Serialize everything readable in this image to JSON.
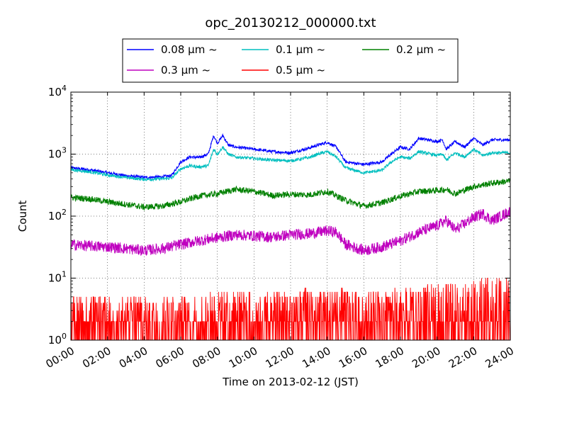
{
  "chart_data": {
    "type": "line",
    "title": "opc_20130212_000000.txt",
    "xlabel": "Time on 2013-02-12 (JST)",
    "ylabel": "Count",
    "y_scale": "log",
    "ylim": [
      1,
      10000
    ],
    "xlim_hours": [
      0,
      24
    ],
    "x_ticks": [
      "00:00",
      "02:00",
      "04:00",
      "06:00",
      "08:00",
      "10:00",
      "12:00",
      "14:00",
      "16:00",
      "18:00",
      "20:00",
      "22:00",
      "24:00"
    ],
    "y_ticks": [
      {
        "base": "10",
        "exp": "0",
        "value": 1
      },
      {
        "base": "10",
        "exp": "1",
        "value": 10
      },
      {
        "base": "10",
        "exp": "2",
        "value": 100
      },
      {
        "base": "10",
        "exp": "3",
        "value": 1000
      },
      {
        "base": "10",
        "exp": "4",
        "value": 10000
      }
    ],
    "grid": true,
    "legend_position": "top-center",
    "series": [
      {
        "name": "0.08 μm ~",
        "color": "#0000ff",
        "x": [
          0,
          1,
          2,
          3,
          4,
          5,
          5.5,
          6,
          6.5,
          7,
          7.5,
          7.8,
          8,
          8.3,
          8.6,
          9,
          10,
          11,
          12,
          13,
          13.5,
          14,
          14.5,
          15,
          16,
          17,
          17.5,
          18,
          18.5,
          19,
          20,
          20.3,
          20.5,
          21,
          21.5,
          22,
          22.5,
          23,
          24
        ],
        "y": [
          600,
          560,
          500,
          450,
          420,
          430,
          450,
          750,
          900,
          880,
          1000,
          2000,
          1500,
          2000,
          1400,
          1300,
          1200,
          1100,
          1050,
          1250,
          1400,
          1550,
          1300,
          750,
          680,
          750,
          1000,
          1300,
          1200,
          1800,
          1600,
          1700,
          1200,
          1600,
          1300,
          1800,
          1400,
          1700,
          1700
        ]
      },
      {
        "name": "0.1 μm ~",
        "color": "#00bfbf",
        "x": [
          0,
          1,
          2,
          3,
          4,
          5,
          5.5,
          6,
          6.5,
          7,
          7.5,
          7.8,
          8,
          8.3,
          8.6,
          9,
          10,
          11,
          12,
          13,
          13.5,
          14,
          14.5,
          15,
          16,
          17,
          17.5,
          18,
          18.5,
          19,
          20,
          20.3,
          20.5,
          21,
          21.5,
          22,
          22.5,
          23,
          24
        ],
        "y": [
          560,
          520,
          460,
          420,
          390,
          400,
          410,
          580,
          650,
          620,
          650,
          1200,
          1000,
          1300,
          1000,
          900,
          850,
          800,
          780,
          880,
          1000,
          1100,
          900,
          600,
          500,
          550,
          750,
          900,
          850,
          1100,
          950,
          1000,
          800,
          1050,
          900,
          1200,
          950,
          1050,
          1050
        ]
      },
      {
        "name": "0.2 μm ~",
        "color": "#008000",
        "x": [
          0,
          1,
          2,
          3,
          4,
          5,
          6,
          7,
          8,
          9,
          10,
          11,
          12,
          13,
          14,
          15,
          16,
          17,
          18,
          19,
          20,
          20.5,
          21,
          22,
          23,
          24
        ],
        "y": [
          200,
          190,
          170,
          155,
          140,
          145,
          170,
          210,
          230,
          270,
          250,
          215,
          225,
          220,
          250,
          180,
          145,
          165,
          210,
          250,
          260,
          270,
          230,
          300,
          340,
          370
        ]
      },
      {
        "name": "0.3 μm ~",
        "color": "#bf00bf",
        "x": [
          0,
          1,
          2,
          3,
          4,
          5,
          6,
          7,
          8,
          9,
          10,
          11,
          12,
          13,
          14,
          14.5,
          15,
          16,
          17,
          18,
          19,
          20,
          20.5,
          21,
          22,
          22.5,
          23,
          24
        ],
        "y": [
          35,
          33,
          32,
          30,
          28,
          30,
          35,
          40,
          45,
          50,
          48,
          46,
          50,
          52,
          58,
          55,
          35,
          28,
          32,
          40,
          55,
          70,
          85,
          60,
          95,
          110,
          85,
          120
        ]
      },
      {
        "name": "0.5 μm ~",
        "color": "#ff0000",
        "x": [
          0,
          2,
          4,
          6,
          8,
          10,
          12,
          14,
          16,
          18,
          20,
          22,
          24
        ],
        "y": [
          2.5,
          2.5,
          2.3,
          2.5,
          3,
          3,
          3,
          3.5,
          3,
          3.5,
          4,
          5,
          6
        ]
      }
    ]
  }
}
